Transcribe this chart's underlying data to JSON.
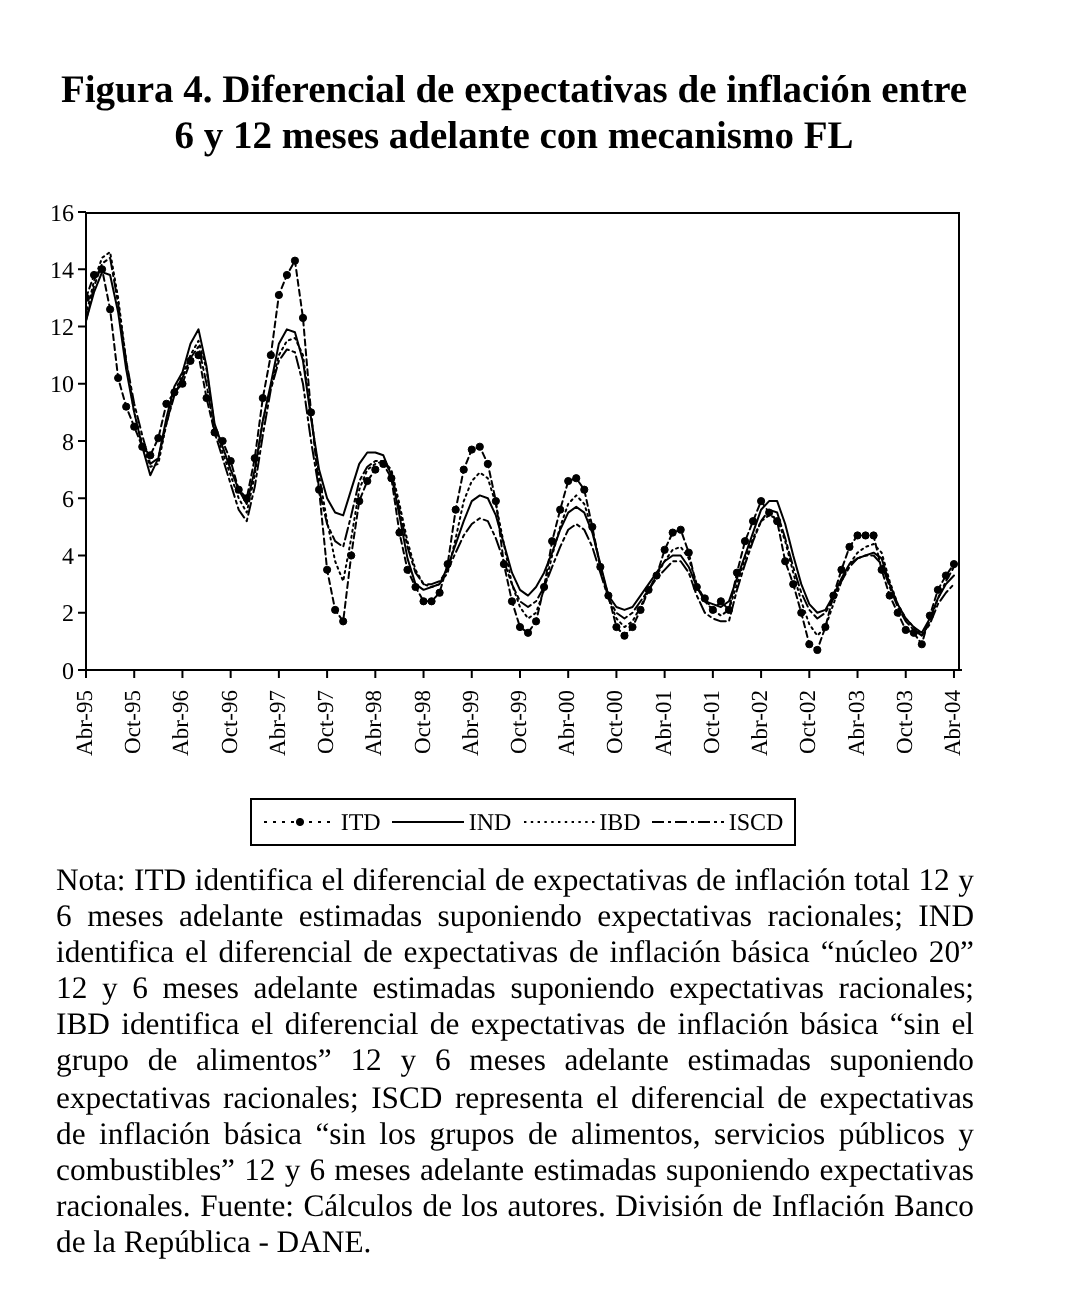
{
  "chart_data": {
    "type": "line",
    "title": "Figura 4. Diferencial de expectativas de inflación entre 6 y 12 meses adelante con mecanismo FL",
    "x": [
      "1995-04",
      "1995-05",
      "1995-06",
      "1995-07",
      "1995-08",
      "1995-09",
      "1995-10",
      "1995-11",
      "1995-12",
      "1996-01",
      "1996-02",
      "1996-03",
      "1996-04",
      "1996-05",
      "1996-06",
      "1996-07",
      "1996-08",
      "1996-09",
      "1996-10",
      "1996-11",
      "1996-12",
      "1997-01",
      "1997-02",
      "1997-03",
      "1997-04",
      "1997-05",
      "1997-06",
      "1997-07",
      "1997-08",
      "1997-09",
      "1997-10",
      "1997-11",
      "1997-12",
      "1998-01",
      "1998-02",
      "1998-03",
      "1998-04",
      "1998-05",
      "1998-06",
      "1998-07",
      "1998-08",
      "1998-09",
      "1998-10",
      "1998-11",
      "1998-12",
      "1999-01",
      "1999-02",
      "1999-03",
      "1999-04",
      "1999-05",
      "1999-06",
      "1999-07",
      "1999-08",
      "1999-09",
      "1999-10",
      "1999-11",
      "1999-12",
      "2000-01",
      "2000-02",
      "2000-03",
      "2000-04",
      "2000-05",
      "2000-06",
      "2000-07",
      "2000-08",
      "2000-09",
      "2000-10",
      "2000-11",
      "2000-12",
      "2001-01",
      "2001-02",
      "2001-03",
      "2001-04",
      "2001-05",
      "2001-06",
      "2001-07",
      "2001-08",
      "2001-09",
      "2001-10",
      "2001-11",
      "2001-12",
      "2002-01",
      "2002-02",
      "2002-03",
      "2002-04",
      "2002-05",
      "2002-06",
      "2002-07",
      "2002-08",
      "2002-09",
      "2002-10",
      "2002-11",
      "2002-12",
      "2003-01",
      "2003-02",
      "2003-03",
      "2003-04",
      "2003-05",
      "2003-06",
      "2003-07",
      "2003-08",
      "2003-09",
      "2003-10",
      "2003-11",
      "2003-12",
      "2004-01",
      "2004-02",
      "2004-03",
      "2004-04"
    ],
    "xlim": [
      "1995-04",
      "2004-05"
    ],
    "xticks": [
      {
        "value": "1995-04",
        "label": "Abr-95"
      },
      {
        "value": "1995-10",
        "label": "Oct-95"
      },
      {
        "value": "1996-04",
        "label": "Abr-96"
      },
      {
        "value": "1996-10",
        "label": "Oct-96"
      },
      {
        "value": "1997-04",
        "label": "Abr-97"
      },
      {
        "value": "1997-10",
        "label": "Oct-97"
      },
      {
        "value": "1998-04",
        "label": "Abr-98"
      },
      {
        "value": "1998-10",
        "label": "Oct-98"
      },
      {
        "value": "1999-04",
        "label": "Abr-99"
      },
      {
        "value": "1999-10",
        "label": "Oct-99"
      },
      {
        "value": "2000-04",
        "label": "Abr-00"
      },
      {
        "value": "2000-10",
        "label": "Oct-00"
      },
      {
        "value": "2001-04",
        "label": "Abr-01"
      },
      {
        "value": "2001-10",
        "label": "Oct-01"
      },
      {
        "value": "2002-04",
        "label": "Abr-02"
      },
      {
        "value": "2002-10",
        "label": "Oct-02"
      },
      {
        "value": "2003-04",
        "label": "Abr-03"
      },
      {
        "value": "2003-10",
        "label": "Oct-03"
      },
      {
        "value": "2004-04",
        "label": "Abr-04"
      }
    ],
    "ylim": [
      0,
      16
    ],
    "yticks": [
      0,
      2,
      4,
      6,
      8,
      10,
      12,
      14,
      16
    ],
    "legend": "bottom",
    "series": [
      {
        "name": "ITD",
        "color": "#000000",
        "marker": "circle",
        "line_style": "dashed",
        "values": [
          13.0,
          13.8,
          14.0,
          12.6,
          10.2,
          9.2,
          8.5,
          7.8,
          7.5,
          8.1,
          9.3,
          9.7,
          10.0,
          10.8,
          11.0,
          9.5,
          8.3,
          8.0,
          7.3,
          6.3,
          6.0,
          7.4,
          9.5,
          11.0,
          13.1,
          13.8,
          14.3,
          12.3,
          9.0,
          6.3,
          3.5,
          2.1,
          1.7,
          4.0,
          5.9,
          6.6,
          7.0,
          7.2,
          6.7,
          4.8,
          3.5,
          2.9,
          2.4,
          2.4,
          2.7,
          3.7,
          5.6,
          7.0,
          7.7,
          7.8,
          7.2,
          5.9,
          3.7,
          2.4,
          1.5,
          1.3,
          1.7,
          2.9,
          4.5,
          5.6,
          6.6,
          6.7,
          6.3,
          5.0,
          3.6,
          2.6,
          1.5,
          1.2,
          1.5,
          2.1,
          2.8,
          3.3,
          4.2,
          4.8,
          4.9,
          4.1,
          2.9,
          2.5,
          2.1,
          2.4,
          2.1,
          3.4,
          4.5,
          5.2,
          5.9,
          5.5,
          5.2,
          3.8,
          3.0,
          2.0,
          0.9,
          0.7,
          1.5,
          2.6,
          3.5,
          4.3,
          4.7,
          4.7,
          4.7,
          3.5,
          2.6,
          2.0,
          1.4,
          1.3,
          0.9,
          1.9,
          2.8,
          3.3,
          3.7
        ]
      },
      {
        "name": "IND",
        "color": "#000000",
        "marker": "none",
        "line_style": "solid",
        "values": [
          12.2,
          13.2,
          13.9,
          13.8,
          12.5,
          10.5,
          9.0,
          7.8,
          6.8,
          7.4,
          8.8,
          9.9,
          10.4,
          11.4,
          11.9,
          10.6,
          8.6,
          7.8,
          7.0,
          6.3,
          5.8,
          7.0,
          8.7,
          10.0,
          11.4,
          11.9,
          11.8,
          10.8,
          8.8,
          7.0,
          6.0,
          5.5,
          5.4,
          6.3,
          7.2,
          7.6,
          7.6,
          7.5,
          6.8,
          5.4,
          3.9,
          3.0,
          2.8,
          2.9,
          3.0,
          3.6,
          4.4,
          5.2,
          5.9,
          6.1,
          6.0,
          5.4,
          4.4,
          3.4,
          2.8,
          2.6,
          2.9,
          3.4,
          4.1,
          4.9,
          5.5,
          5.7,
          5.5,
          4.8,
          3.7,
          2.6,
          2.2,
          2.1,
          2.2,
          2.6,
          3.0,
          3.4,
          3.8,
          4.0,
          4.0,
          3.6,
          2.9,
          2.4,
          2.3,
          2.2,
          2.4,
          3.2,
          4.0,
          4.8,
          5.6,
          5.9,
          5.9,
          5.1,
          4.0,
          3.0,
          2.3,
          2.0,
          2.1,
          2.6,
          3.2,
          3.7,
          3.9,
          4.0,
          4.1,
          3.9,
          3.0,
          2.3,
          1.8,
          1.5,
          1.3,
          1.8,
          2.5,
          3.0,
          3.3
        ]
      },
      {
        "name": "IBD",
        "color": "#000000",
        "marker": "none",
        "line_style": "dotted",
        "values": [
          12.4,
          13.6,
          14.4,
          14.6,
          13.0,
          10.8,
          9.0,
          7.9,
          7.1,
          7.2,
          8.6,
          9.7,
          10.3,
          11.0,
          11.5,
          10.5,
          8.5,
          7.6,
          6.8,
          6.0,
          5.5,
          6.8,
          8.7,
          9.9,
          11.0,
          11.5,
          11.6,
          11.0,
          8.9,
          6.8,
          5.2,
          3.8,
          3.1,
          4.6,
          6.3,
          7.0,
          7.2,
          7.3,
          7.0,
          5.8,
          4.5,
          3.5,
          3.0,
          2.9,
          3.0,
          3.4,
          4.6,
          5.9,
          6.6,
          6.9,
          6.7,
          5.8,
          4.4,
          3.0,
          2.2,
          1.8,
          2.0,
          2.8,
          4.0,
          5.0,
          5.8,
          6.1,
          5.8,
          4.9,
          3.6,
          2.5,
          1.8,
          1.5,
          1.7,
          2.2,
          2.8,
          3.3,
          3.8,
          4.2,
          4.3,
          3.9,
          3.0,
          2.4,
          2.1,
          1.9,
          2.1,
          3.0,
          3.9,
          4.6,
          5.2,
          5.4,
          5.3,
          4.5,
          3.4,
          2.4,
          1.6,
          1.2,
          1.5,
          2.3,
          3.1,
          3.7,
          4.1,
          4.3,
          4.4,
          4.1,
          3.1,
          2.3,
          1.8,
          1.5,
          1.2,
          1.7,
          2.5,
          3.1,
          3.6
        ]
      },
      {
        "name": "ISCD",
        "color": "#000000",
        "marker": "none",
        "line_style": "dashdot",
        "values": [
          12.2,
          13.4,
          14.2,
          14.4,
          12.8,
          10.8,
          9.3,
          8.2,
          7.2,
          7.4,
          8.6,
          9.6,
          10.2,
          10.9,
          11.3,
          10.0,
          8.3,
          7.4,
          6.5,
          5.6,
          5.2,
          6.4,
          8.2,
          9.8,
          10.8,
          11.2,
          11.1,
          10.0,
          8.0,
          6.3,
          5.1,
          4.5,
          4.3,
          5.4,
          6.6,
          7.1,
          7.3,
          7.3,
          6.9,
          5.6,
          4.3,
          3.4,
          3.0,
          3.0,
          3.1,
          3.5,
          4.1,
          4.7,
          5.1,
          5.3,
          5.2,
          4.6,
          3.8,
          3.0,
          2.4,
          2.2,
          2.4,
          2.9,
          3.6,
          4.3,
          4.9,
          5.1,
          4.9,
          4.3,
          3.4,
          2.5,
          2.0,
          1.8,
          2.0,
          2.4,
          2.8,
          3.2,
          3.5,
          3.8,
          3.8,
          3.4,
          2.6,
          2.0,
          1.8,
          1.7,
          1.7,
          2.8,
          3.7,
          4.5,
          5.2,
          5.6,
          5.5,
          4.6,
          3.6,
          2.7,
          2.1,
          1.8,
          2.0,
          2.5,
          3.1,
          3.6,
          3.9,
          4.0,
          4.0,
          3.7,
          2.9,
          2.2,
          1.7,
          1.4,
          1.2,
          1.6,
          2.3,
          2.7,
          3.0
        ]
      }
    ],
    "annotations": [
      "Nota: ITD identifica el diferencial de expectativas de inflación total 12 y 6 meses adelante estimadas suponiendo expectativas racionales; IND identifica el diferencial de expectativas de inflación básica “núcleo 20” 12 y 6 meses adelante estimadas suponiendo expectativas racionales; IBD identifica el diferencial de expectativas de inflación básica “sin el grupo de alimentos” 12 y 6 meses adelante estimadas suponiendo expectativas racionales; ISCD representa el diferencial de expectativas de inflación básica “sin los grupos de alimentos, servicios públicos y combustibles” 12 y 6 meses adelante estimadas suponiendo expectativas racionales. Fuente: Cálculos de los autores. División de Inflación Banco de la República - DANE."
    ]
  }
}
